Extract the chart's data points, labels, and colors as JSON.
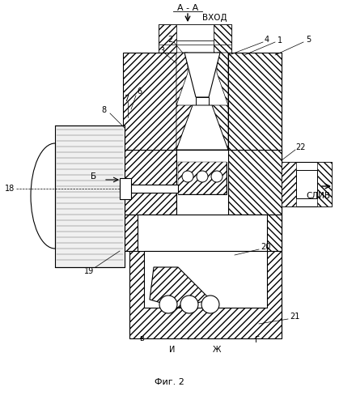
{
  "title": "Фиг. 2",
  "bg_color": "#ffffff",
  "figsize": [
    4.19,
    4.99
  ],
  "dpi": 100,
  "labels": {
    "AA": "А - А",
    "vhod": "ВХОД",
    "sliv": "СЛИВ",
    "B_label": "Б",
    "V_label": "в",
    "G_label": "Г",
    "I_label": "И",
    "Zh_label": "Ж",
    "n1": "1",
    "n2": "2",
    "n3": "3",
    "n4": "4",
    "n5": "5",
    "n6": "6",
    "n7": "7",
    "n8": "8",
    "n18": "18",
    "n19": "19",
    "n20": "20",
    "n21": "21",
    "n22": "22"
  }
}
